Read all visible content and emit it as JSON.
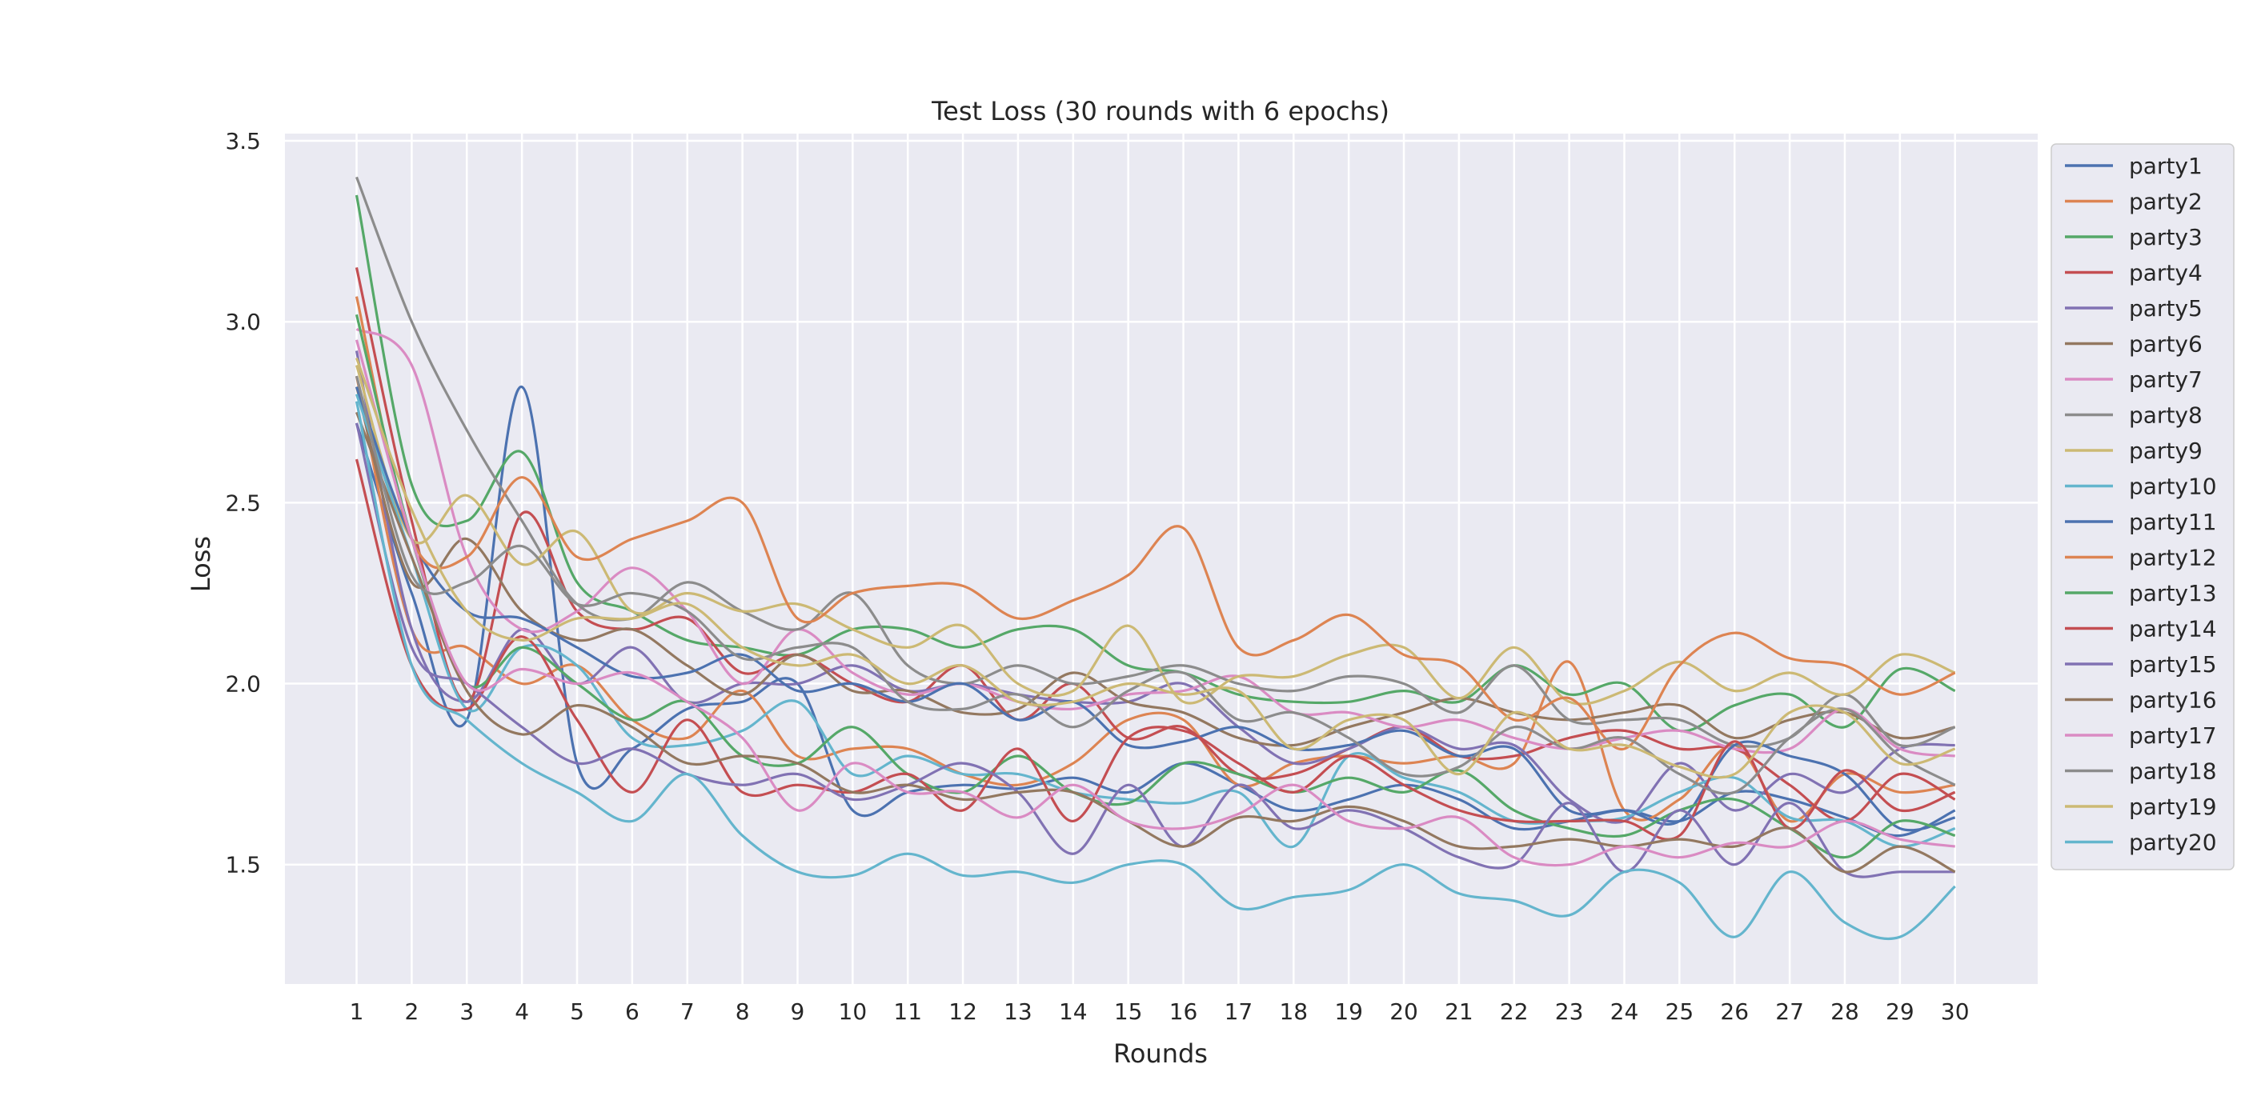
{
  "chart_data": {
    "type": "line",
    "title": "Test Loss (30 rounds with 6 epochs)",
    "xlabel": "Rounds",
    "ylabel": "Loss",
    "x": [
      1,
      2,
      3,
      4,
      5,
      6,
      7,
      8,
      9,
      10,
      11,
      12,
      13,
      14,
      15,
      16,
      17,
      18,
      19,
      20,
      21,
      22,
      23,
      24,
      25,
      26,
      27,
      28,
      29,
      30
    ],
    "xlim": [
      -0.3,
      31.5
    ],
    "ylim": [
      1.17,
      3.52
    ],
    "yticks": [
      1.5,
      2.0,
      2.5,
      3.0,
      3.5
    ],
    "ytick_labels": [
      "1.5",
      "2.0",
      "2.5",
      "3.0",
      "3.5"
    ],
    "grid": true,
    "legend_position": "outside-right",
    "series": [
      {
        "name": "party1",
        "color": "#4c72b0",
        "values": [
          2.72,
          2.25,
          1.9,
          2.82,
          1.78,
          1.82,
          1.93,
          1.95,
          2.0,
          1.65,
          1.7,
          1.72,
          1.71,
          1.74,
          1.7,
          1.78,
          1.72,
          1.65,
          1.68,
          1.72,
          1.68,
          1.6,
          1.62,
          1.65,
          1.62,
          1.7,
          1.68,
          1.63,
          1.58,
          1.65
        ]
      },
      {
        "name": "party2",
        "color": "#dd8452",
        "values": [
          2.85,
          2.15,
          2.1,
          2.0,
          2.05,
          1.9,
          1.85,
          1.98,
          1.8,
          1.82,
          1.82,
          1.75,
          1.72,
          1.78,
          1.9,
          1.9,
          1.72,
          1.78,
          1.8,
          1.78,
          1.8,
          1.78,
          2.06,
          1.65,
          1.68,
          1.83,
          1.62,
          1.75,
          1.7,
          1.72
        ]
      },
      {
        "name": "party3",
        "color": "#55a868",
        "values": [
          3.35,
          2.55,
          2.45,
          2.64,
          2.28,
          2.2,
          2.12,
          2.1,
          2.08,
          2.15,
          2.15,
          2.1,
          2.15,
          2.15,
          2.05,
          2.03,
          1.97,
          1.95,
          1.95,
          1.98,
          1.95,
          2.05,
          1.97,
          2.0,
          1.87,
          1.94,
          1.97,
          1.88,
          2.04,
          1.98
        ]
      },
      {
        "name": "party4",
        "color": "#c44e52",
        "values": [
          3.15,
          2.45,
          1.95,
          2.47,
          2.2,
          2.15,
          2.18,
          2.03,
          2.08,
          2.0,
          1.95,
          2.05,
          1.9,
          2.0,
          1.85,
          1.88,
          1.75,
          1.75,
          1.82,
          1.88,
          1.8,
          1.8,
          1.85,
          1.87,
          1.82,
          1.82,
          1.72,
          1.62,
          1.75,
          1.68
        ]
      },
      {
        "name": "party5",
        "color": "#8172b3",
        "values": [
          2.92,
          2.15,
          1.95,
          2.15,
          2.0,
          2.1,
          1.95,
          2.0,
          2.0,
          2.05,
          1.98,
          2.0,
          1.97,
          1.95,
          1.95,
          2.0,
          1.88,
          1.78,
          1.82,
          1.88,
          1.82,
          1.83,
          1.68,
          1.62,
          1.78,
          1.65,
          1.75,
          1.7,
          1.82,
          1.83
        ]
      },
      {
        "name": "party6",
        "color": "#937860",
        "values": [
          2.82,
          2.28,
          2.4,
          2.2,
          2.12,
          2.15,
          2.05,
          1.97,
          2.08,
          1.98,
          1.98,
          1.92,
          1.93,
          2.03,
          1.95,
          1.92,
          1.85,
          1.83,
          1.88,
          1.92,
          1.96,
          1.92,
          1.9,
          1.92,
          1.94,
          1.85,
          1.9,
          1.92,
          1.85,
          1.88
        ]
      },
      {
        "name": "party7",
        "color": "#da8bc3",
        "values": [
          2.98,
          2.88,
          2.35,
          2.15,
          2.2,
          2.32,
          2.2,
          2.0,
          2.15,
          2.03,
          1.97,
          2.0,
          1.95,
          1.93,
          1.97,
          1.98,
          2.02,
          1.92,
          1.92,
          1.88,
          1.9,
          1.85,
          1.82,
          1.85,
          1.87,
          1.82,
          1.82,
          1.93,
          1.82,
          1.8
        ]
      },
      {
        "name": "party8",
        "color": "#8c8c8c",
        "values": [
          3.4,
          3.0,
          2.7,
          2.45,
          2.22,
          2.18,
          2.28,
          2.2,
          2.15,
          2.25,
          2.05,
          2.0,
          2.05,
          2.0,
          2.02,
          2.05,
          2.0,
          1.98,
          2.02,
          2.0,
          1.92,
          2.05,
          1.9,
          1.9,
          1.9,
          1.83,
          1.85,
          1.97,
          1.83,
          1.88
        ]
      },
      {
        "name": "party9",
        "color": "#ccb974",
        "values": [
          2.88,
          2.4,
          2.52,
          2.33,
          2.42,
          2.2,
          2.25,
          2.2,
          2.22,
          2.15,
          2.1,
          2.16,
          2.0,
          1.98,
          2.16,
          1.95,
          2.02,
          2.02,
          2.08,
          2.1,
          1.96,
          2.1,
          1.95,
          1.98,
          2.06,
          1.98,
          2.03,
          1.97,
          2.08,
          2.03
        ]
      },
      {
        "name": "party10",
        "color": "#64b5cd",
        "values": [
          2.8,
          2.35,
          1.93,
          2.1,
          2.05,
          1.85,
          1.83,
          1.87,
          1.95,
          1.75,
          1.8,
          1.75,
          1.75,
          1.7,
          1.68,
          1.67,
          1.7,
          1.55,
          1.8,
          1.74,
          1.7,
          1.62,
          1.62,
          1.63,
          1.7,
          1.74,
          1.63,
          1.62,
          1.55,
          1.6
        ]
      },
      {
        "name": "party11",
        "color": "#4c72b0",
        "values": [
          2.82,
          2.4,
          2.2,
          2.18,
          2.1,
          2.02,
          2.03,
          2.08,
          1.98,
          2.0,
          1.95,
          2.0,
          1.9,
          1.95,
          1.83,
          1.84,
          1.88,
          1.82,
          1.83,
          1.87,
          1.8,
          1.82,
          1.65,
          1.65,
          1.62,
          1.83,
          1.8,
          1.75,
          1.6,
          1.63
        ]
      },
      {
        "name": "party12",
        "color": "#dd8452",
        "values": [
          3.07,
          2.4,
          2.35,
          2.57,
          2.35,
          2.4,
          2.45,
          2.5,
          2.18,
          2.25,
          2.27,
          2.27,
          2.18,
          2.23,
          2.3,
          2.43,
          2.1,
          2.12,
          2.19,
          2.08,
          2.05,
          1.9,
          1.96,
          1.82,
          2.05,
          2.14,
          2.07,
          2.05,
          1.97,
          2.03
        ]
      },
      {
        "name": "party13",
        "color": "#55a868",
        "values": [
          3.02,
          2.4,
          2.0,
          2.1,
          2.0,
          1.9,
          1.95,
          1.8,
          1.78,
          1.88,
          1.75,
          1.7,
          1.8,
          1.7,
          1.67,
          1.78,
          1.75,
          1.7,
          1.74,
          1.7,
          1.76,
          1.65,
          1.6,
          1.58,
          1.65,
          1.68,
          1.6,
          1.52,
          1.62,
          1.58
        ]
      },
      {
        "name": "party14",
        "color": "#c44e52",
        "values": [
          2.62,
          2.05,
          1.93,
          2.13,
          1.9,
          1.7,
          1.9,
          1.7,
          1.72,
          1.7,
          1.75,
          1.65,
          1.82,
          1.62,
          1.85,
          1.87,
          1.78,
          1.7,
          1.8,
          1.72,
          1.65,
          1.62,
          1.62,
          1.62,
          1.58,
          1.84,
          1.6,
          1.76,
          1.65,
          1.7
        ]
      },
      {
        "name": "party15",
        "color": "#8172b3",
        "values": [
          2.72,
          2.1,
          2.0,
          1.88,
          1.78,
          1.82,
          1.75,
          1.72,
          1.75,
          1.68,
          1.72,
          1.78,
          1.7,
          1.53,
          1.72,
          1.55,
          1.72,
          1.6,
          1.65,
          1.6,
          1.52,
          1.5,
          1.67,
          1.48,
          1.65,
          1.5,
          1.67,
          1.48,
          1.48,
          1.48
        ]
      },
      {
        "name": "party16",
        "color": "#937860",
        "values": [
          2.75,
          2.35,
          1.98,
          1.86,
          1.94,
          1.88,
          1.78,
          1.8,
          1.78,
          1.7,
          1.72,
          1.68,
          1.7,
          1.7,
          1.62,
          1.55,
          1.63,
          1.62,
          1.66,
          1.62,
          1.55,
          1.55,
          1.57,
          1.55,
          1.57,
          1.55,
          1.6,
          1.48,
          1.55,
          1.48
        ]
      },
      {
        "name": "party17",
        "color": "#da8bc3",
        "values": [
          2.95,
          2.4,
          2.0,
          2.04,
          2.0,
          2.03,
          1.95,
          1.85,
          1.65,
          1.78,
          1.7,
          1.7,
          1.63,
          1.72,
          1.62,
          1.6,
          1.64,
          1.72,
          1.62,
          1.6,
          1.63,
          1.52,
          1.5,
          1.55,
          1.52,
          1.56,
          1.55,
          1.62,
          1.57,
          1.55
        ]
      },
      {
        "name": "party18",
        "color": "#8c8c8c",
        "values": [
          2.85,
          2.3,
          2.28,
          2.38,
          2.22,
          2.25,
          2.2,
          2.07,
          2.1,
          2.1,
          1.95,
          1.93,
          1.97,
          1.88,
          1.98,
          2.03,
          1.9,
          1.92,
          1.85,
          1.75,
          1.77,
          1.88,
          1.82,
          1.85,
          1.75,
          1.7,
          1.85,
          1.93,
          1.8,
          1.72
        ]
      },
      {
        "name": "party19",
        "color": "#ccb974",
        "values": [
          2.9,
          2.48,
          2.2,
          2.12,
          2.18,
          2.18,
          2.22,
          2.1,
          2.05,
          2.08,
          2.0,
          2.05,
          1.95,
          1.95,
          2.0,
          1.97,
          1.98,
          1.82,
          1.9,
          1.9,
          1.75,
          1.92,
          1.82,
          1.83,
          1.77,
          1.75,
          1.92,
          1.92,
          1.78,
          1.82
        ]
      },
      {
        "name": "party20",
        "color": "#64b5cd",
        "values": [
          2.78,
          2.05,
          1.9,
          1.78,
          1.7,
          1.62,
          1.75,
          1.58,
          1.48,
          1.47,
          1.53,
          1.47,
          1.48,
          1.45,
          1.5,
          1.5,
          1.38,
          1.41,
          1.43,
          1.5,
          1.42,
          1.4,
          1.36,
          1.48,
          1.45,
          1.3,
          1.48,
          1.34,
          1.3,
          1.44
        ]
      }
    ]
  }
}
